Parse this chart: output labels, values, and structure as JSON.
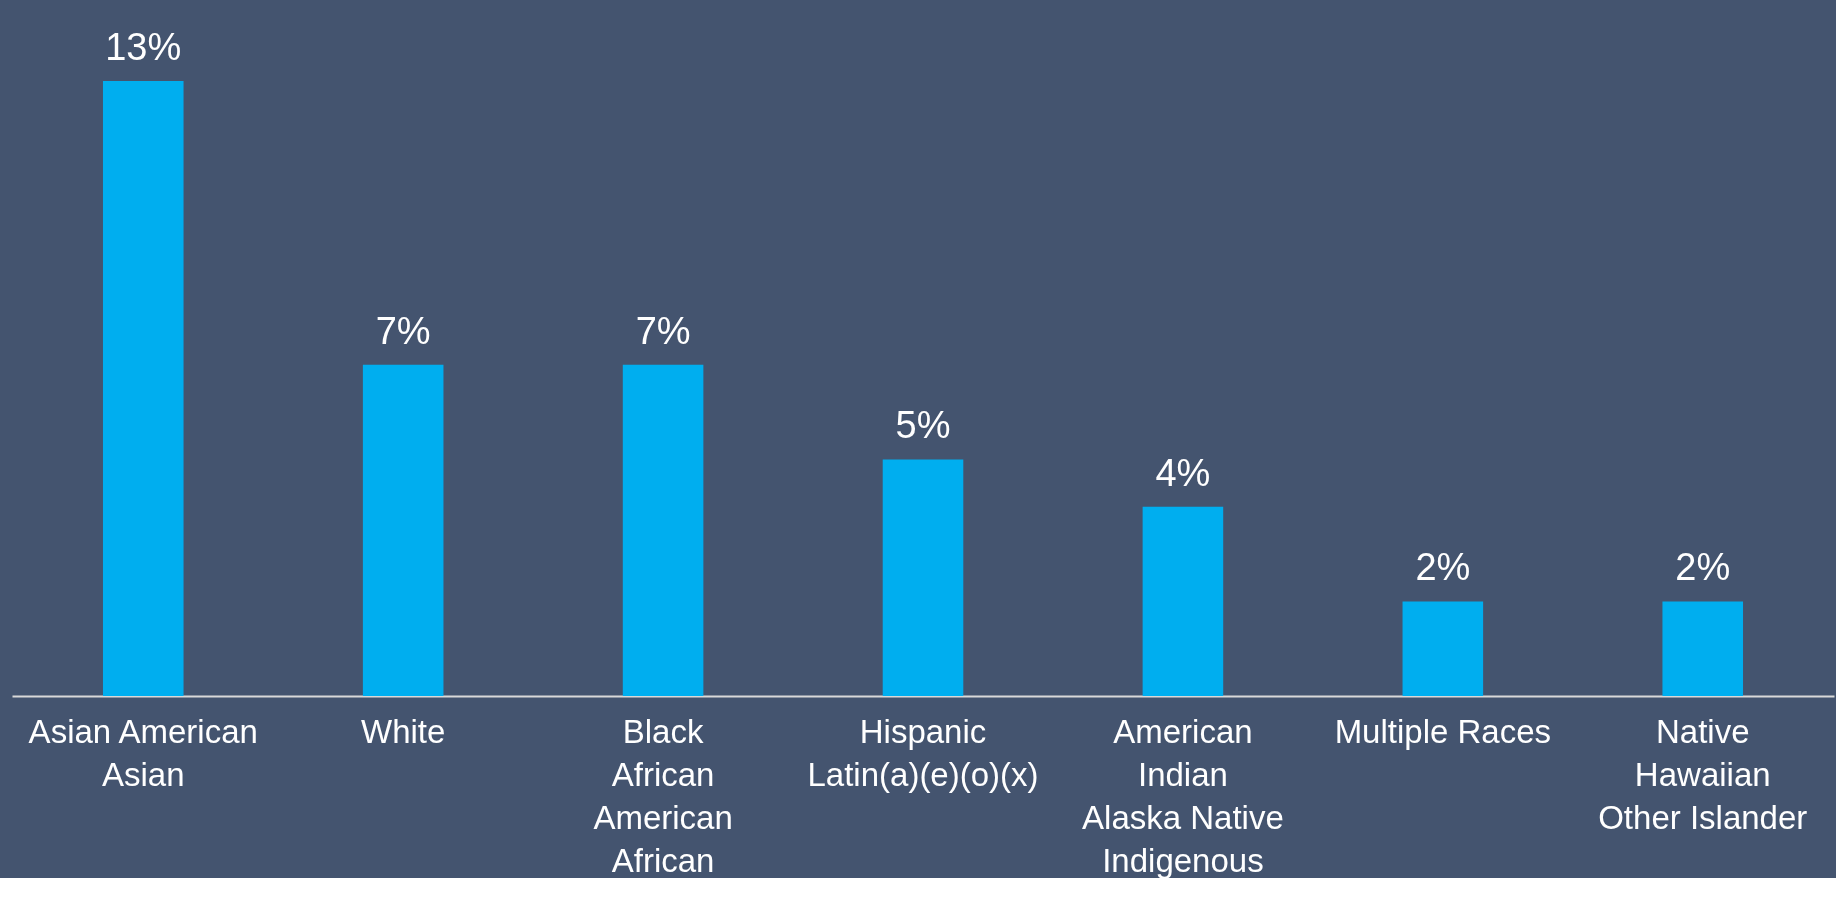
{
  "chart_data": {
    "type": "bar",
    "categories": [
      "Asian American\nAsian",
      "White",
      "Black\nAfrican\nAmerican\nAfrican",
      "Hispanic\nLatin(a)(e)(o)(x)",
      "American\nIndian\nAlaska Native\nIndigenous",
      "Multiple Races",
      "Native\nHawaiian\nOther Islander"
    ],
    "values": [
      13,
      7,
      7,
      5,
      4,
      2,
      2
    ],
    "value_labels": [
      "13%",
      "7%",
      "7%",
      "5%",
      "4%",
      "2%",
      "2%"
    ],
    "color": "#00aeef",
    "grid": false
  }
}
